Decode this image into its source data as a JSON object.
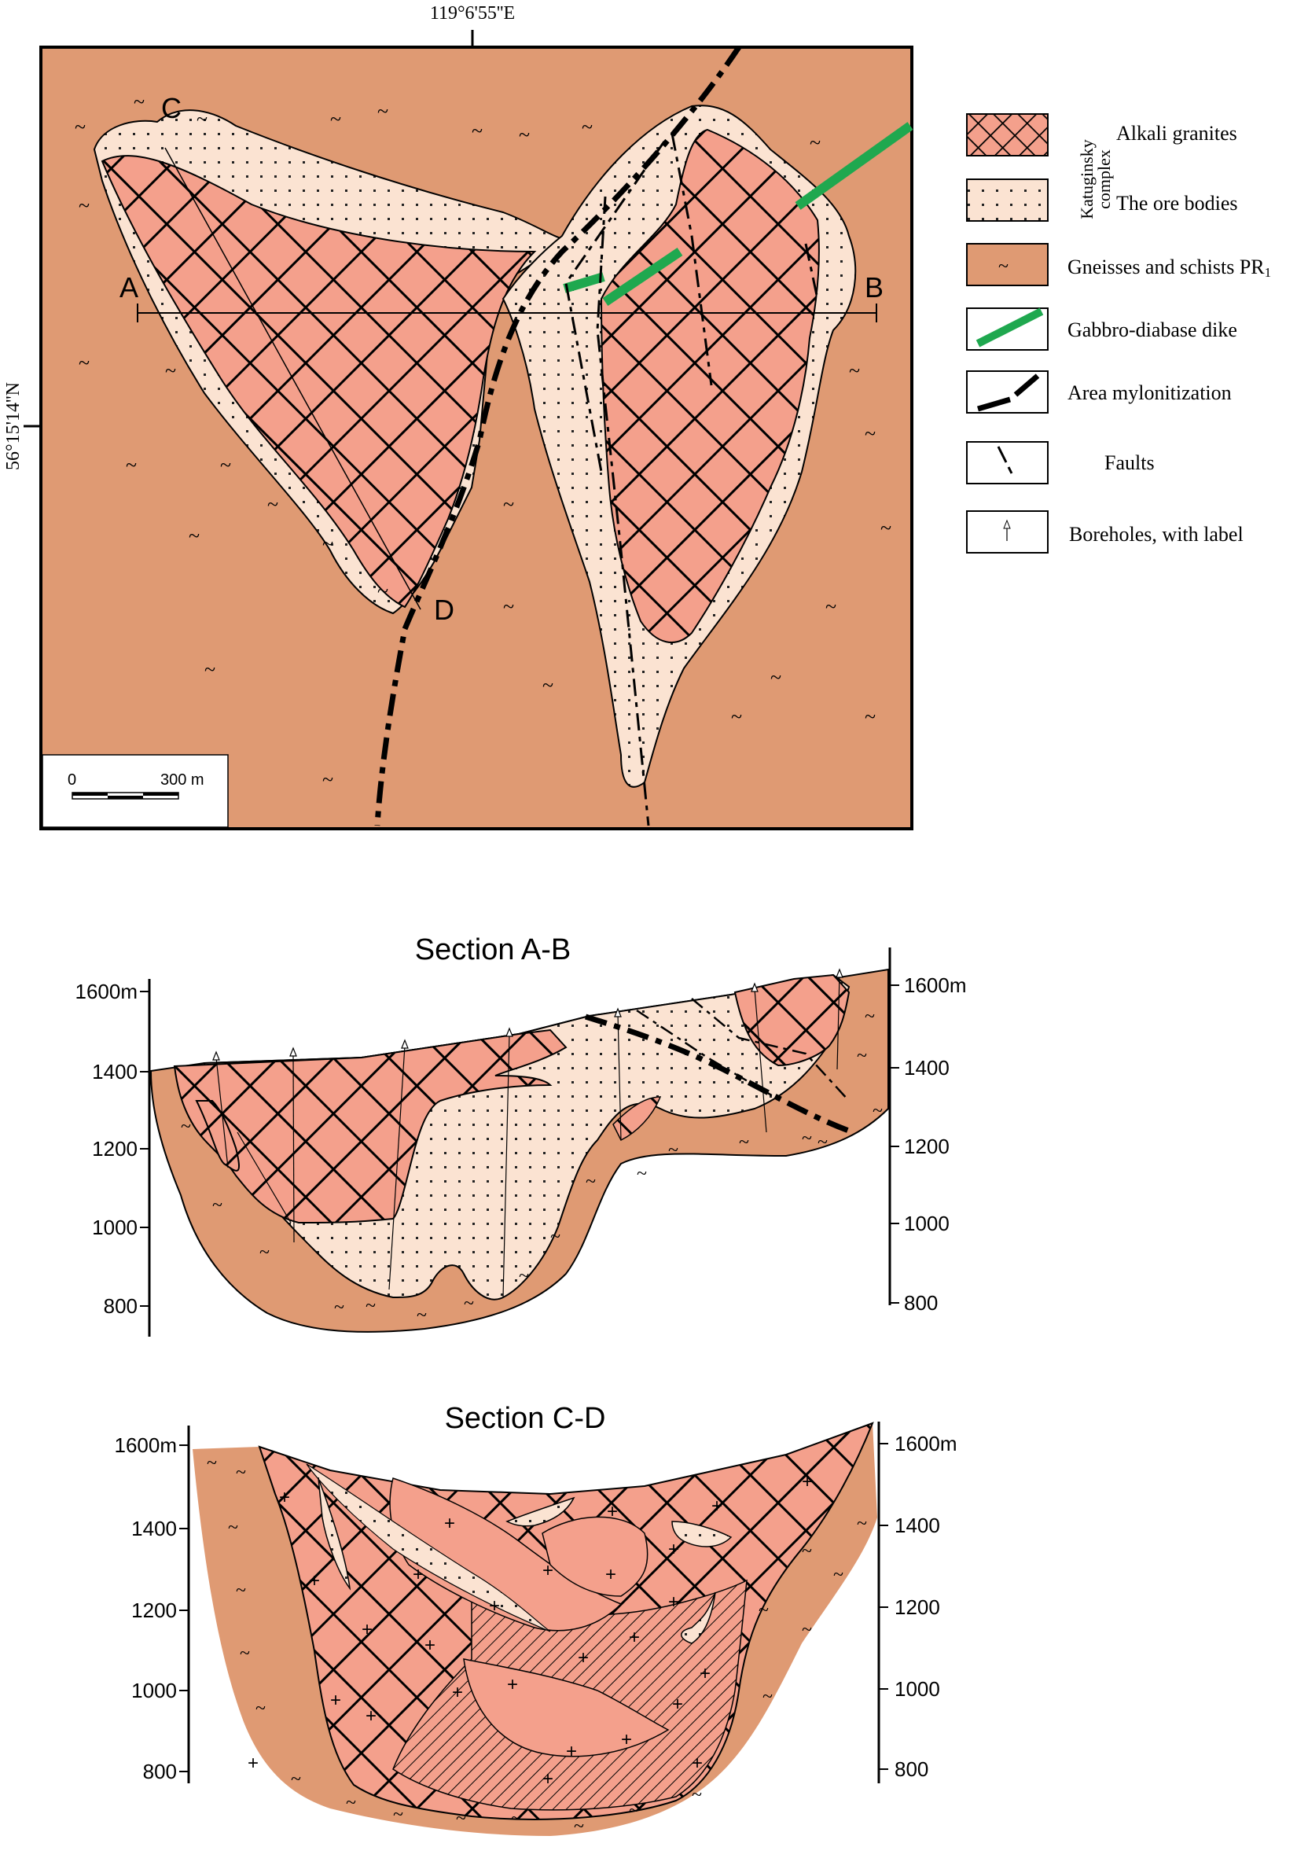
{
  "map": {
    "coord_top": "119°6'55''E",
    "coord_left": "56°15'14''N",
    "points": {
      "A": "A",
      "B": "B",
      "C": "C",
      "D": "D"
    },
    "scale": {
      "zero": "0",
      "end": "300 m"
    }
  },
  "legend": {
    "group_label_line1": "Katuginsky",
    "group_label_line2": "complex",
    "items": [
      {
        "icon": "granite-crosshatch-swatch",
        "label": "Alkali granites"
      },
      {
        "icon": "ore-dots-swatch",
        "label": "The ore bodies"
      },
      {
        "icon": "gneiss-tilde-swatch",
        "label": "Gneisses and schists PR",
        "label_sub": "1"
      },
      {
        "icon": "green-dike-swatch",
        "label": "Gabbro-diabase dike"
      },
      {
        "icon": "mylonite-dash-swatch",
        "label": "Area mylonitization"
      },
      {
        "icon": "fault-dashdot-swatch",
        "label": "Faults"
      },
      {
        "icon": "borehole-arrow-swatch",
        "label": "Boreholes, with label"
      }
    ],
    "colors": {
      "granite": "#f4a08c",
      "ore": "#fbe3d2",
      "gneiss": "#df9a73",
      "dike": "#1fa84f",
      "line": "#000000"
    }
  },
  "sections": [
    {
      "title": "Section A-B",
      "left_ticks": [
        "1600m",
        "1400",
        "1200",
        "1000",
        "800"
      ],
      "right_ticks": [
        "1600m",
        "1400",
        "1200",
        "1000",
        "800"
      ]
    },
    {
      "title": "Section C-D",
      "left_ticks": [
        "1600m",
        "1400",
        "1200",
        "1000",
        "800"
      ],
      "right_ticks": [
        "1600m",
        "1400",
        "1200",
        "1000",
        "800"
      ]
    }
  ]
}
